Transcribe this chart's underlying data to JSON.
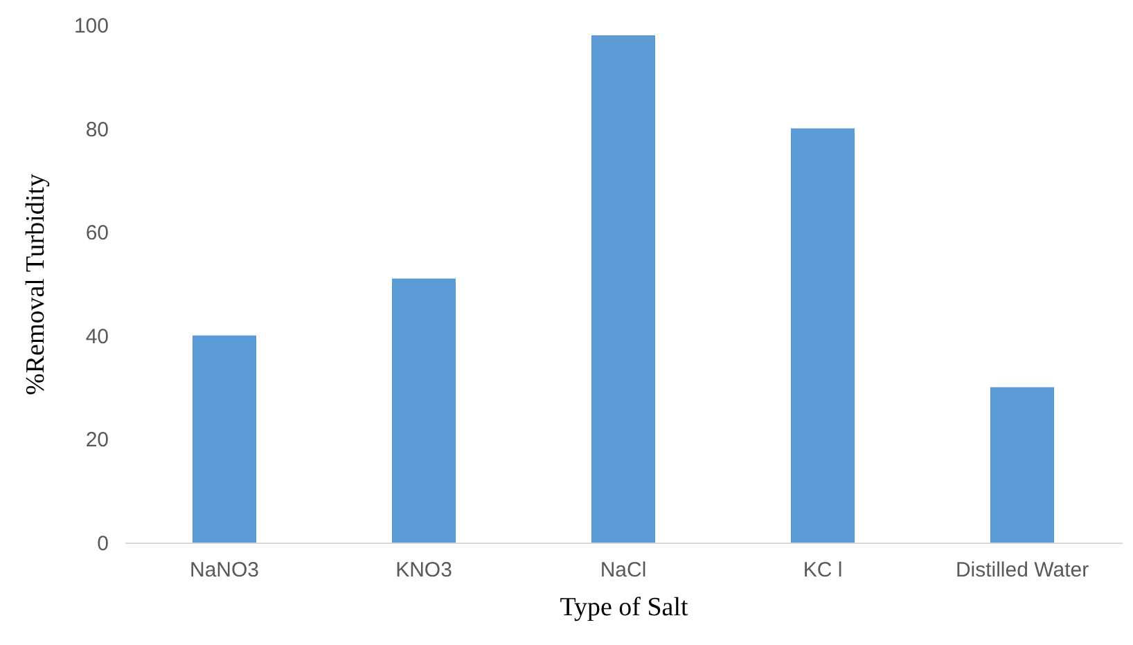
{
  "chart_data": {
    "type": "bar",
    "xlabel": "Type of Salt",
    "ylabel": "%Removal Turbidity",
    "categories": [
      "NaNO3",
      "KNO3",
      "NaCl",
      "KC l",
      "Distilled Water"
    ],
    "values": [
      40,
      51,
      98,
      80,
      30
    ],
    "color": "#5b9bd5",
    "ylim": [
      0,
      100
    ],
    "yticks": [
      0,
      20,
      40,
      60,
      80,
      100
    ],
    "grid": false
  }
}
